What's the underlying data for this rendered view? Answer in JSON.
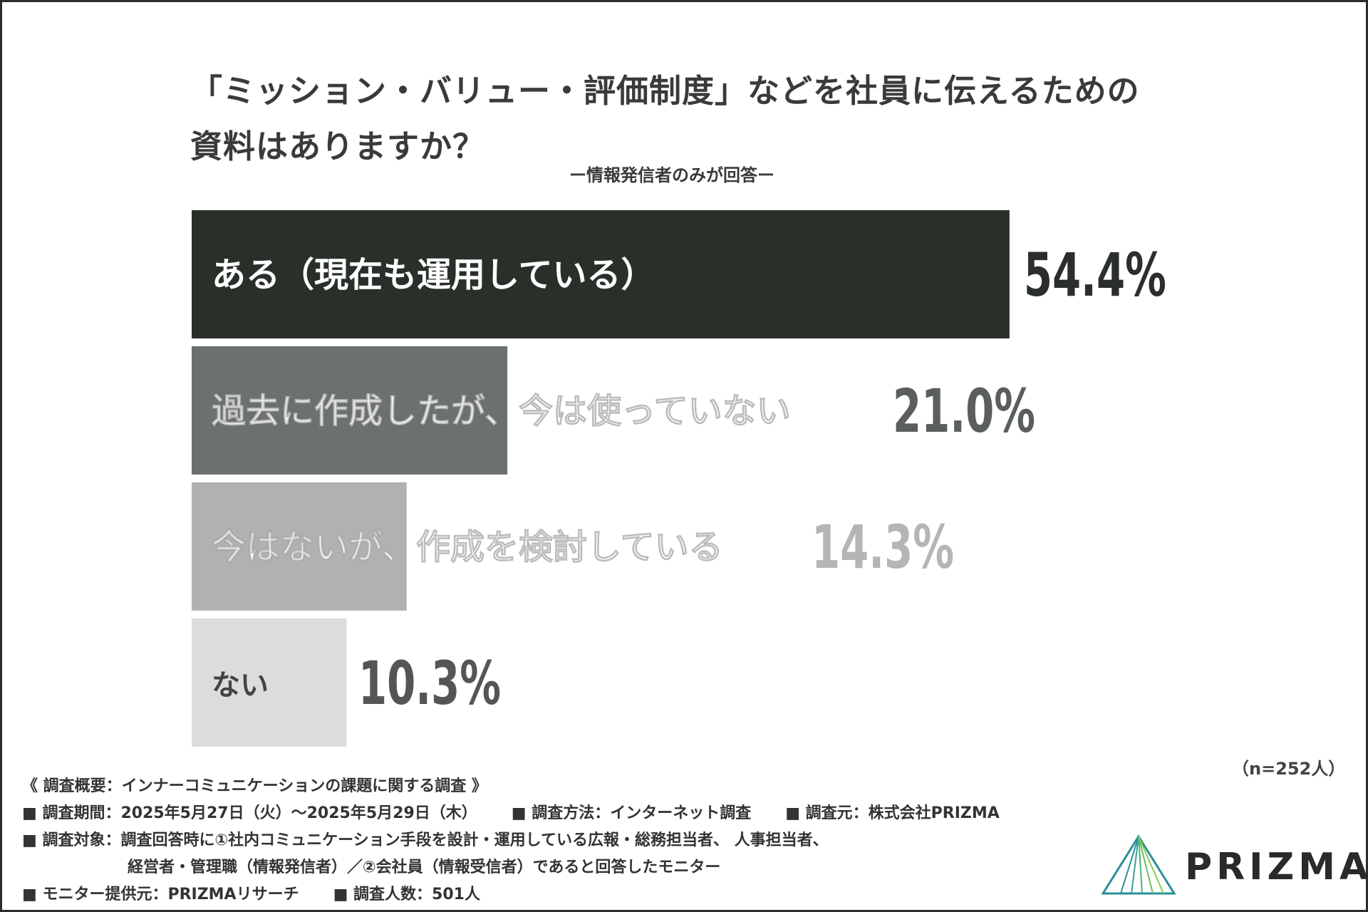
{
  "title": {
    "line1": "「ミッション・バリュー・評価制度」などを社員に伝えるための",
    "line2": "資料はありますか？"
  },
  "subtitle": "ー情報発信者のみが回答ー",
  "chart_data": {
    "type": "bar",
    "orientation": "horizontal",
    "categories": [
      "ある（現在も運用している）",
      "過去に作成したが、今は使っていない",
      "今はないが、作成を検討している",
      "ない"
    ],
    "values": [
      54.4,
      21.0,
      14.3,
      10.3
    ],
    "value_labels": [
      "54.4%",
      "21.0%",
      "14.3%",
      "10.3%"
    ],
    "colors": [
      "#283029",
      "#6b716c",
      "#b1b1b1",
      "#dcdcdc"
    ],
    "label_colors": [
      "#ffffff",
      "#ffffff",
      "#ffffff",
      "#444444"
    ],
    "value_colors": [
      "#2b2f2c",
      "#5a5f5b",
      "#b5b5b5",
      "#555555"
    ],
    "xlim": [
      0,
      100
    ]
  },
  "sample_note": "（n=252人）",
  "footer": {
    "heading": "《 調査概要：インナーコミュニケーションの課題に関する調査 》",
    "period": "■ 調査期間：2025年5月27日（火）〜2025年5月29日（木）",
    "method": "■ 調査方法：インターネット調査",
    "org": "■ 調査元：株式会社PRIZMA",
    "target_line1": "■ 調査対象：調査回答時に①社内コミュニケーション手段を設計・運用している広報・総務担当者、 人事担当者、",
    "target_line2": "経営者・管理職（情報発信者）／②会社員（情報受信者）であると回答したモニター",
    "provider": "■ モニター提供元：PRIZMAリサーチ",
    "count": "■ 調査人数：501人"
  },
  "logo": {
    "text": "PRIZMA",
    "color": "#2a8f9a"
  }
}
